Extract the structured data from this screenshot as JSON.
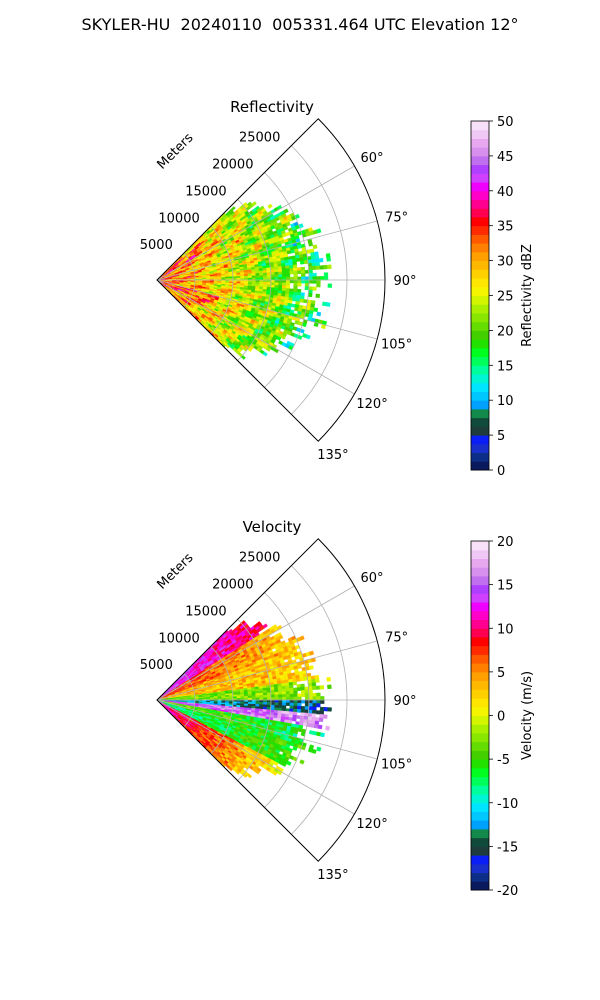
{
  "figure": {
    "title": "SKYLER-HU  20240110  005331.464 UTC Elevation 12°"
  },
  "chart_data": [
    {
      "type": "heatmap",
      "subtype": "polar-sector",
      "title": "Reflectivity",
      "radial_axis_label": "Meters",
      "range_tick_labels": [
        "5000",
        "10000",
        "15000",
        "20000",
        "25000"
      ],
      "range_ticks": [
        5000,
        10000,
        15000,
        20000,
        25000
      ],
      "range_max": 30000,
      "angle_tick_labels": [
        "60°",
        "75°",
        "90°",
        "105°",
        "120°",
        "135°"
      ],
      "angle_ticks": [
        60,
        75,
        90,
        105,
        120,
        135
      ],
      "angle_range": [
        45,
        135
      ],
      "data_extent_m": 23000,
      "grid": true,
      "colorbar": {
        "label": "Reflectivity dBZ",
        "min": 0,
        "max": 50,
        "tick_labels": [
          "0",
          "5",
          "10",
          "15",
          "20",
          "25",
          "30",
          "35",
          "40",
          "45",
          "50"
        ],
        "ticks": [
          0,
          5,
          10,
          15,
          20,
          25,
          30,
          35,
          40,
          45,
          50
        ],
        "colors": [
          "#0a1a5c",
          "#0d2e86",
          "#1a2ecc",
          "#0a1ff5",
          "#1e3c3c",
          "#0f4a3a",
          "#138a4a",
          "#00a0ff",
          "#00c8ff",
          "#00e5ff",
          "#00f5d4",
          "#00ff9c",
          "#00ff5a",
          "#00ff1f",
          "#22e000",
          "#44d000",
          "#66dd00",
          "#88e600",
          "#aaee00",
          "#d4f500",
          "#f5f500",
          "#ffe600",
          "#ffd000",
          "#ffb800",
          "#ff9f00",
          "#ff8000",
          "#ff5a00",
          "#ff2a00",
          "#ff0000",
          "#ff0050",
          "#ff0090",
          "#ff00c8",
          "#f000ff",
          "#d040ff",
          "#b040ff",
          "#c070ee",
          "#d890ee",
          "#e8a8f0",
          "#f0c8f5",
          "#f8e0fa"
        ]
      }
    },
    {
      "type": "heatmap",
      "subtype": "polar-sector",
      "title": "Velocity",
      "radial_axis_label": "Meters",
      "range_tick_labels": [
        "5000",
        "10000",
        "15000",
        "20000",
        "25000"
      ],
      "range_ticks": [
        5000,
        10000,
        15000,
        20000,
        25000
      ],
      "range_max": 30000,
      "angle_tick_labels": [
        "60°",
        "75°",
        "90°",
        "105°",
        "120°",
        "135°"
      ],
      "angle_ticks": [
        60,
        75,
        90,
        105,
        120,
        135
      ],
      "angle_range": [
        45,
        135
      ],
      "data_extent_m": 23000,
      "grid": true,
      "colorbar": {
        "label": "Velocity (m/s)",
        "min": -20,
        "max": 20,
        "tick_labels": [
          "-20",
          "-15",
          "-10",
          "-5",
          "0",
          "5",
          "10",
          "15",
          "20"
        ],
        "ticks": [
          -20,
          -15,
          -10,
          -5,
          0,
          5,
          10,
          15,
          20
        ],
        "colors": [
          "#0a1a5c",
          "#0d2e86",
          "#1a2ecc",
          "#0a1ff5",
          "#1e3c3c",
          "#0f4a3a",
          "#138a4a",
          "#00a0ff",
          "#00c8ff",
          "#00e5ff",
          "#00f5d4",
          "#00ff9c",
          "#00ff5a",
          "#00ff1f",
          "#22e000",
          "#44d000",
          "#66dd00",
          "#88e600",
          "#aaee00",
          "#d4f500",
          "#f5f500",
          "#ffe600",
          "#ffd000",
          "#ffb800",
          "#ff9f00",
          "#ff8000",
          "#ff5a00",
          "#ff2a00",
          "#ff0000",
          "#ff0050",
          "#ff0090",
          "#ff00c8",
          "#f000ff",
          "#d040ff",
          "#b040ff",
          "#c070ee",
          "#d890ee",
          "#e8a8f0",
          "#f0c8f5",
          "#f8e0fa"
        ]
      }
    }
  ]
}
